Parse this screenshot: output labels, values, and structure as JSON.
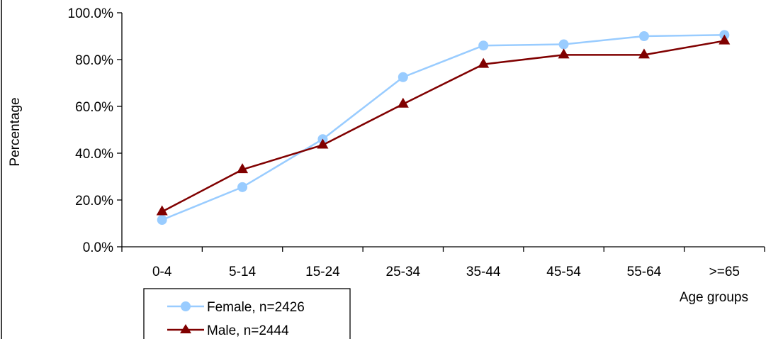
{
  "chart_data": {
    "type": "line",
    "categories": [
      "0-4",
      "5-14",
      "15-24",
      "25-34",
      "35-44",
      "45-54",
      "55-64",
      ">=65"
    ],
    "series": [
      {
        "name": "Female, n=2426",
        "values": [
          11.5,
          25.5,
          46.0,
          72.5,
          86.0,
          86.5,
          90.0,
          90.5
        ],
        "color": "#99ccff",
        "marker": "circle"
      },
      {
        "name": "Male, n=2444",
        "values": [
          15.0,
          33.0,
          43.5,
          61.0,
          78.0,
          82.0,
          82.0,
          88.0
        ],
        "color": "#800000",
        "marker": "triangle"
      }
    ],
    "xlabel": "Age groups",
    "ylabel": "Percentage",
    "ylim": [
      0,
      100
    ],
    "yticks": [
      "0.0%",
      "20.0%",
      "40.0%",
      "60.0%",
      "80.0%",
      "100.0%"
    ],
    "ytick_values": [
      0,
      20,
      40,
      60,
      80,
      100
    ],
    "grid": false,
    "legend_position": "bottom-left"
  }
}
